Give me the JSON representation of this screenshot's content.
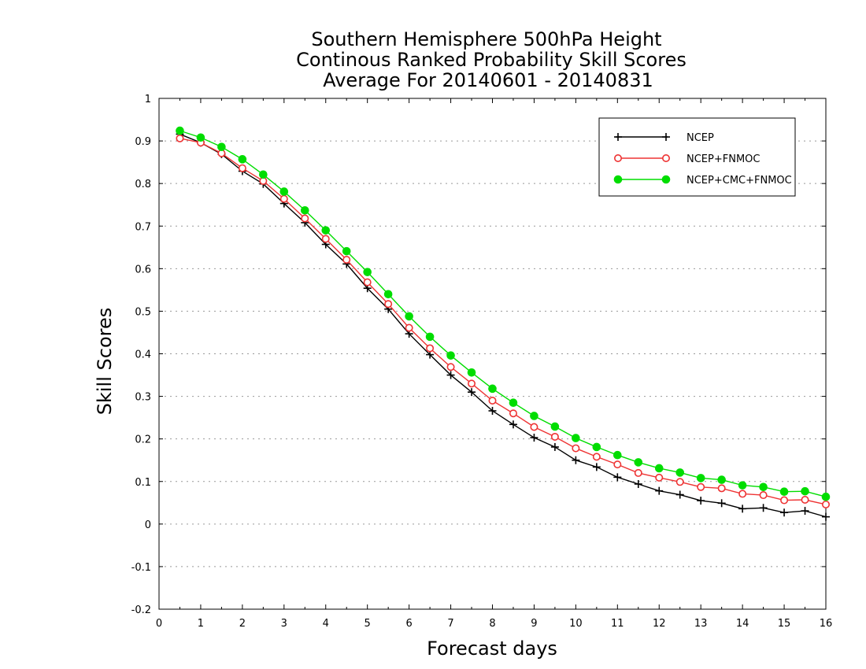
{
  "chart_data": {
    "type": "line",
    "title_lines": [
      "Southern Hemisphere 500hPa Height",
      "Continous Ranked Probability Skill Scores",
      "Average For 20140601 - 20140831"
    ],
    "xlabel": "Forecast days",
    "ylabel": "Skill Scores",
    "xlim": [
      0,
      16
    ],
    "ylim": [
      -0.2,
      1
    ],
    "x_ticks": [
      "0",
      "1",
      "2",
      "3",
      "4",
      "5",
      "6",
      "7",
      "8",
      "9",
      "10",
      "11",
      "12",
      "13",
      "14",
      "15",
      "16"
    ],
    "y_ticks": [
      "-0.2",
      "-0.1",
      "0",
      "0.1",
      "0.2",
      "0.3",
      "0.4",
      "0.5",
      "0.6",
      "0.7",
      "0.8",
      "0.9",
      "1"
    ],
    "grid": "horizontal dotted",
    "legend_position": "top-right",
    "x": [
      0.5,
      1,
      1.5,
      2,
      2.5,
      3,
      3.5,
      4,
      4.5,
      5,
      5.5,
      6,
      6.5,
      7,
      7.5,
      8,
      8.5,
      9,
      9.5,
      10,
      10.5,
      11,
      11.5,
      12,
      12.5,
      13,
      13.5,
      14,
      14.5,
      15,
      15.5,
      16
    ],
    "series": [
      {
        "name": "NCEP",
        "color": "#000000",
        "marker": "plus",
        "values": [
          0.916,
          0.896,
          0.869,
          0.829,
          0.799,
          0.753,
          0.708,
          0.657,
          0.611,
          0.554,
          0.505,
          0.447,
          0.398,
          0.35,
          0.31,
          0.266,
          0.234,
          0.203,
          0.181,
          0.15,
          0.134,
          0.11,
          0.094,
          0.078,
          0.069,
          0.055,
          0.049,
          0.036,
          0.038,
          0.027,
          0.031,
          0.017
        ]
      },
      {
        "name": "NCEP+FNMOC",
        "color": "#ee3333",
        "marker": "open-circle",
        "values": [
          0.906,
          0.896,
          0.871,
          0.836,
          0.806,
          0.764,
          0.718,
          0.67,
          0.621,
          0.568,
          0.517,
          0.461,
          0.413,
          0.369,
          0.33,
          0.29,
          0.26,
          0.228,
          0.205,
          0.178,
          0.158,
          0.14,
          0.12,
          0.109,
          0.099,
          0.087,
          0.084,
          0.071,
          0.068,
          0.056,
          0.057,
          0.046
        ]
      },
      {
        "name": "NCEP+CMC+FNMOC",
        "color": "#00dd00",
        "marker": "filled-circle",
        "values": [
          0.924,
          0.908,
          0.886,
          0.857,
          0.821,
          0.781,
          0.737,
          0.69,
          0.641,
          0.592,
          0.54,
          0.488,
          0.44,
          0.396,
          0.356,
          0.318,
          0.285,
          0.254,
          0.229,
          0.202,
          0.181,
          0.162,
          0.145,
          0.131,
          0.121,
          0.108,
          0.104,
          0.091,
          0.087,
          0.076,
          0.077,
          0.064
        ]
      }
    ]
  }
}
